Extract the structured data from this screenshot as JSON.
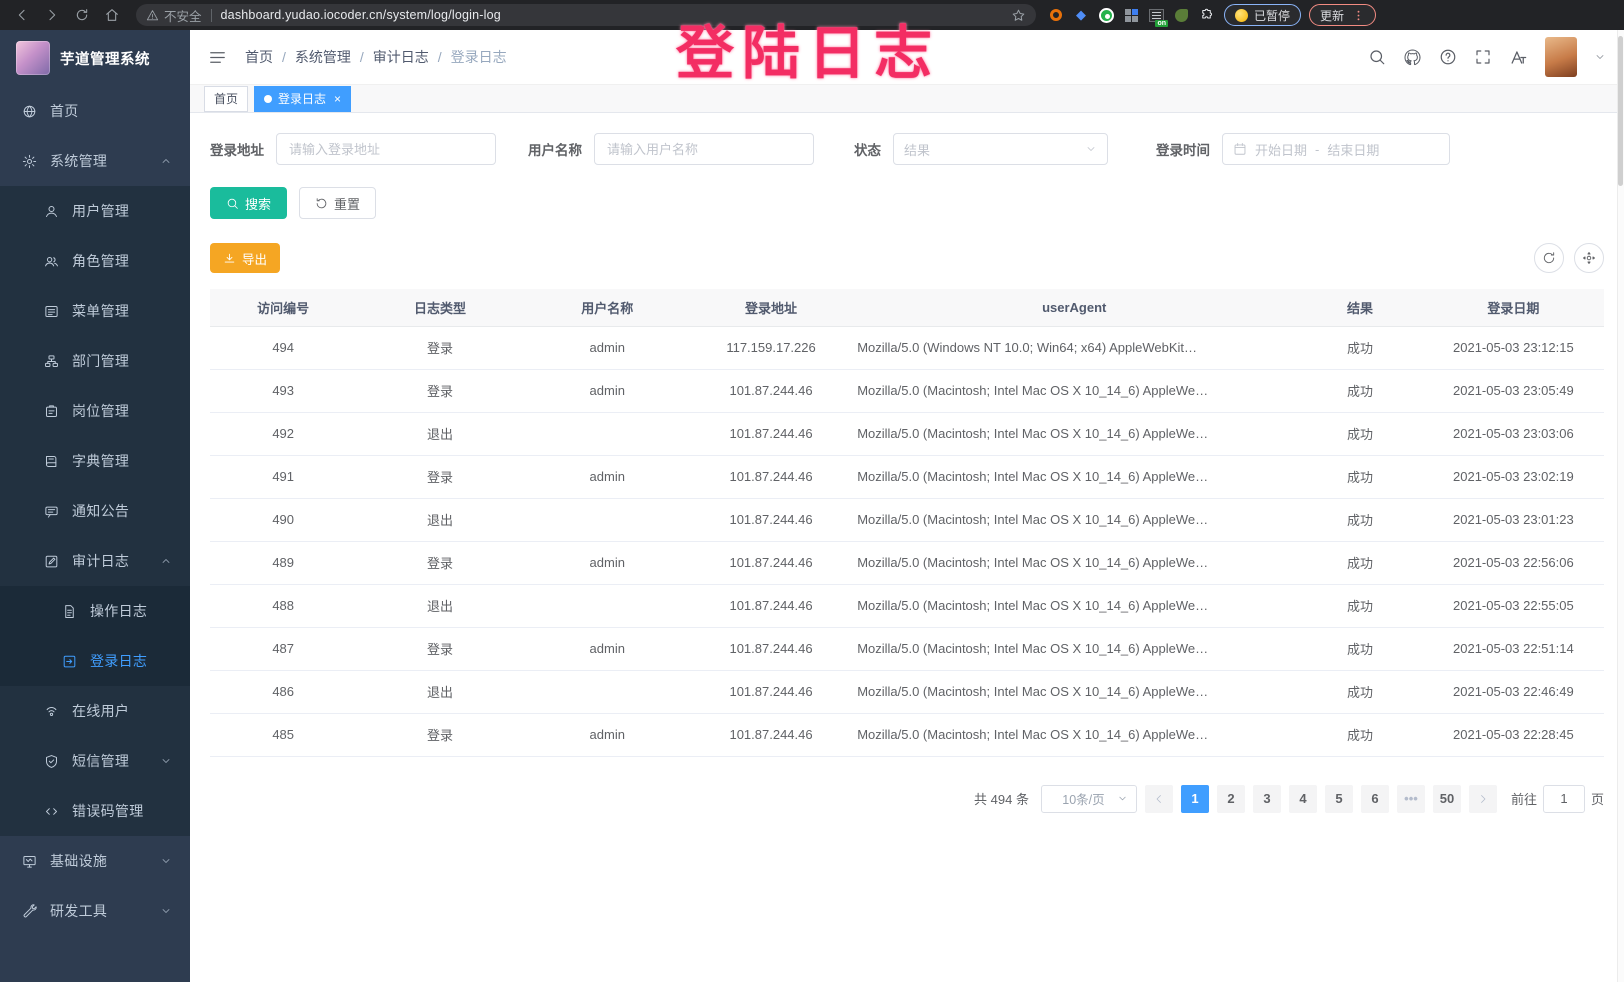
{
  "browser": {
    "security_warning": "不安全",
    "url": "dashboard.yudao.iocoder.cn/system/log/login-log",
    "paused_badge": "已暂停",
    "update_button": "更新"
  },
  "watermark": "登陆日志",
  "sidebar": {
    "title": "芋道管理系统",
    "items": [
      {
        "label": "首页",
        "icon": "dashboard",
        "level": 1
      },
      {
        "label": "系统管理",
        "icon": "gear",
        "level": 1,
        "chevron": "up"
      },
      {
        "label": "用户管理",
        "icon": "user",
        "level": 2
      },
      {
        "label": "角色管理",
        "icon": "users",
        "level": 2
      },
      {
        "label": "菜单管理",
        "icon": "menu",
        "level": 2
      },
      {
        "label": "部门管理",
        "icon": "tree",
        "level": 2
      },
      {
        "label": "岗位管理",
        "icon": "badge",
        "level": 2
      },
      {
        "label": "字典管理",
        "icon": "book",
        "level": 2
      },
      {
        "label": "通知公告",
        "icon": "megaphone",
        "level": 2
      },
      {
        "label": "审计日志",
        "icon": "edit",
        "level": 2,
        "chevron": "up"
      },
      {
        "label": "操作日志",
        "icon": "doc",
        "level": 3
      },
      {
        "label": "登录日志",
        "icon": "login",
        "level": 3,
        "active": true
      },
      {
        "label": "在线用户",
        "icon": "online",
        "level": 2
      },
      {
        "label": "短信管理",
        "icon": "sms",
        "level": 2,
        "chevron": "down"
      },
      {
        "label": "错误码管理",
        "icon": "code",
        "level": 2
      },
      {
        "label": "基础设施",
        "icon": "infra",
        "level": 1,
        "chevron": "down"
      },
      {
        "label": "研发工具",
        "icon": "tools",
        "level": 1,
        "chevron": "down"
      }
    ]
  },
  "header": {
    "breadcrumb": [
      "首页",
      "系统管理",
      "审计日志",
      "登录日志"
    ]
  },
  "tabs": [
    {
      "label": "首页",
      "active": false,
      "closable": false
    },
    {
      "label": "登录日志",
      "active": true,
      "closable": true
    }
  ],
  "filters": {
    "fields": [
      {
        "label": "登录地址",
        "placeholder": "请输入登录地址"
      },
      {
        "label": "用户名称",
        "placeholder": "请输入用户名称"
      },
      {
        "label": "状态",
        "placeholder": "结果"
      },
      {
        "label": "登录时间",
        "start_placeholder": "开始日期",
        "separator": "-",
        "end_placeholder": "结束日期"
      }
    ]
  },
  "toolbar": {
    "search_label": "搜索",
    "reset_label": "重置",
    "export_label": "导出"
  },
  "table": {
    "columns": [
      "访问编号",
      "日志类型",
      "用户名称",
      "登录地址",
      "userAgent",
      "结果",
      "登录日期"
    ],
    "rows": [
      [
        "494",
        "登录",
        "admin",
        "117.159.17.226",
        "Mozilla/5.0 (Windows NT 10.0; Win64; x64) AppleWebKit…",
        "成功",
        "2021-05-03 23:12:15"
      ],
      [
        "493",
        "登录",
        "admin",
        "101.87.244.46",
        "Mozilla/5.0 (Macintosh; Intel Mac OS X 10_14_6) AppleWe…",
        "成功",
        "2021-05-03 23:05:49"
      ],
      [
        "492",
        "退出",
        "",
        "101.87.244.46",
        "Mozilla/5.0 (Macintosh; Intel Mac OS X 10_14_6) AppleWe…",
        "成功",
        "2021-05-03 23:03:06"
      ],
      [
        "491",
        "登录",
        "admin",
        "101.87.244.46",
        "Mozilla/5.0 (Macintosh; Intel Mac OS X 10_14_6) AppleWe…",
        "成功",
        "2021-05-03 23:02:19"
      ],
      [
        "490",
        "退出",
        "",
        "101.87.244.46",
        "Mozilla/5.0 (Macintosh; Intel Mac OS X 10_14_6) AppleWe…",
        "成功",
        "2021-05-03 23:01:23"
      ],
      [
        "489",
        "登录",
        "admin",
        "101.87.244.46",
        "Mozilla/5.0 (Macintosh; Intel Mac OS X 10_14_6) AppleWe…",
        "成功",
        "2021-05-03 22:56:06"
      ],
      [
        "488",
        "退出",
        "",
        "101.87.244.46",
        "Mozilla/5.0 (Macintosh; Intel Mac OS X 10_14_6) AppleWe…",
        "成功",
        "2021-05-03 22:55:05"
      ],
      [
        "487",
        "登录",
        "admin",
        "101.87.244.46",
        "Mozilla/5.0 (Macintosh; Intel Mac OS X 10_14_6) AppleWe…",
        "成功",
        "2021-05-03 22:51:14"
      ],
      [
        "486",
        "退出",
        "",
        "101.87.244.46",
        "Mozilla/5.0 (Macintosh; Intel Mac OS X 10_14_6) AppleWe…",
        "成功",
        "2021-05-03 22:46:49"
      ],
      [
        "485",
        "登录",
        "admin",
        "101.87.244.46",
        "Mozilla/5.0 (Macintosh; Intel Mac OS X 10_14_6) AppleWe…",
        "成功",
        "2021-05-03 22:28:45"
      ]
    ]
  },
  "pagination": {
    "total_text": "共 494 条",
    "page_size": "10条/页",
    "pages": [
      "1",
      "2",
      "3",
      "4",
      "5",
      "6",
      "•••",
      "50"
    ],
    "active_page": "1",
    "goto_label": "前往",
    "goto_value": "1",
    "goto_suffix": "页"
  },
  "colors": {
    "accent_blue": "#409eff",
    "search_teal": "#1abc9c",
    "export_orange": "#f5a623",
    "watermark_pink": "#f32d63",
    "sidebar_bg": "#2e3c50",
    "sidebar_sub_bg": "#223140"
  }
}
